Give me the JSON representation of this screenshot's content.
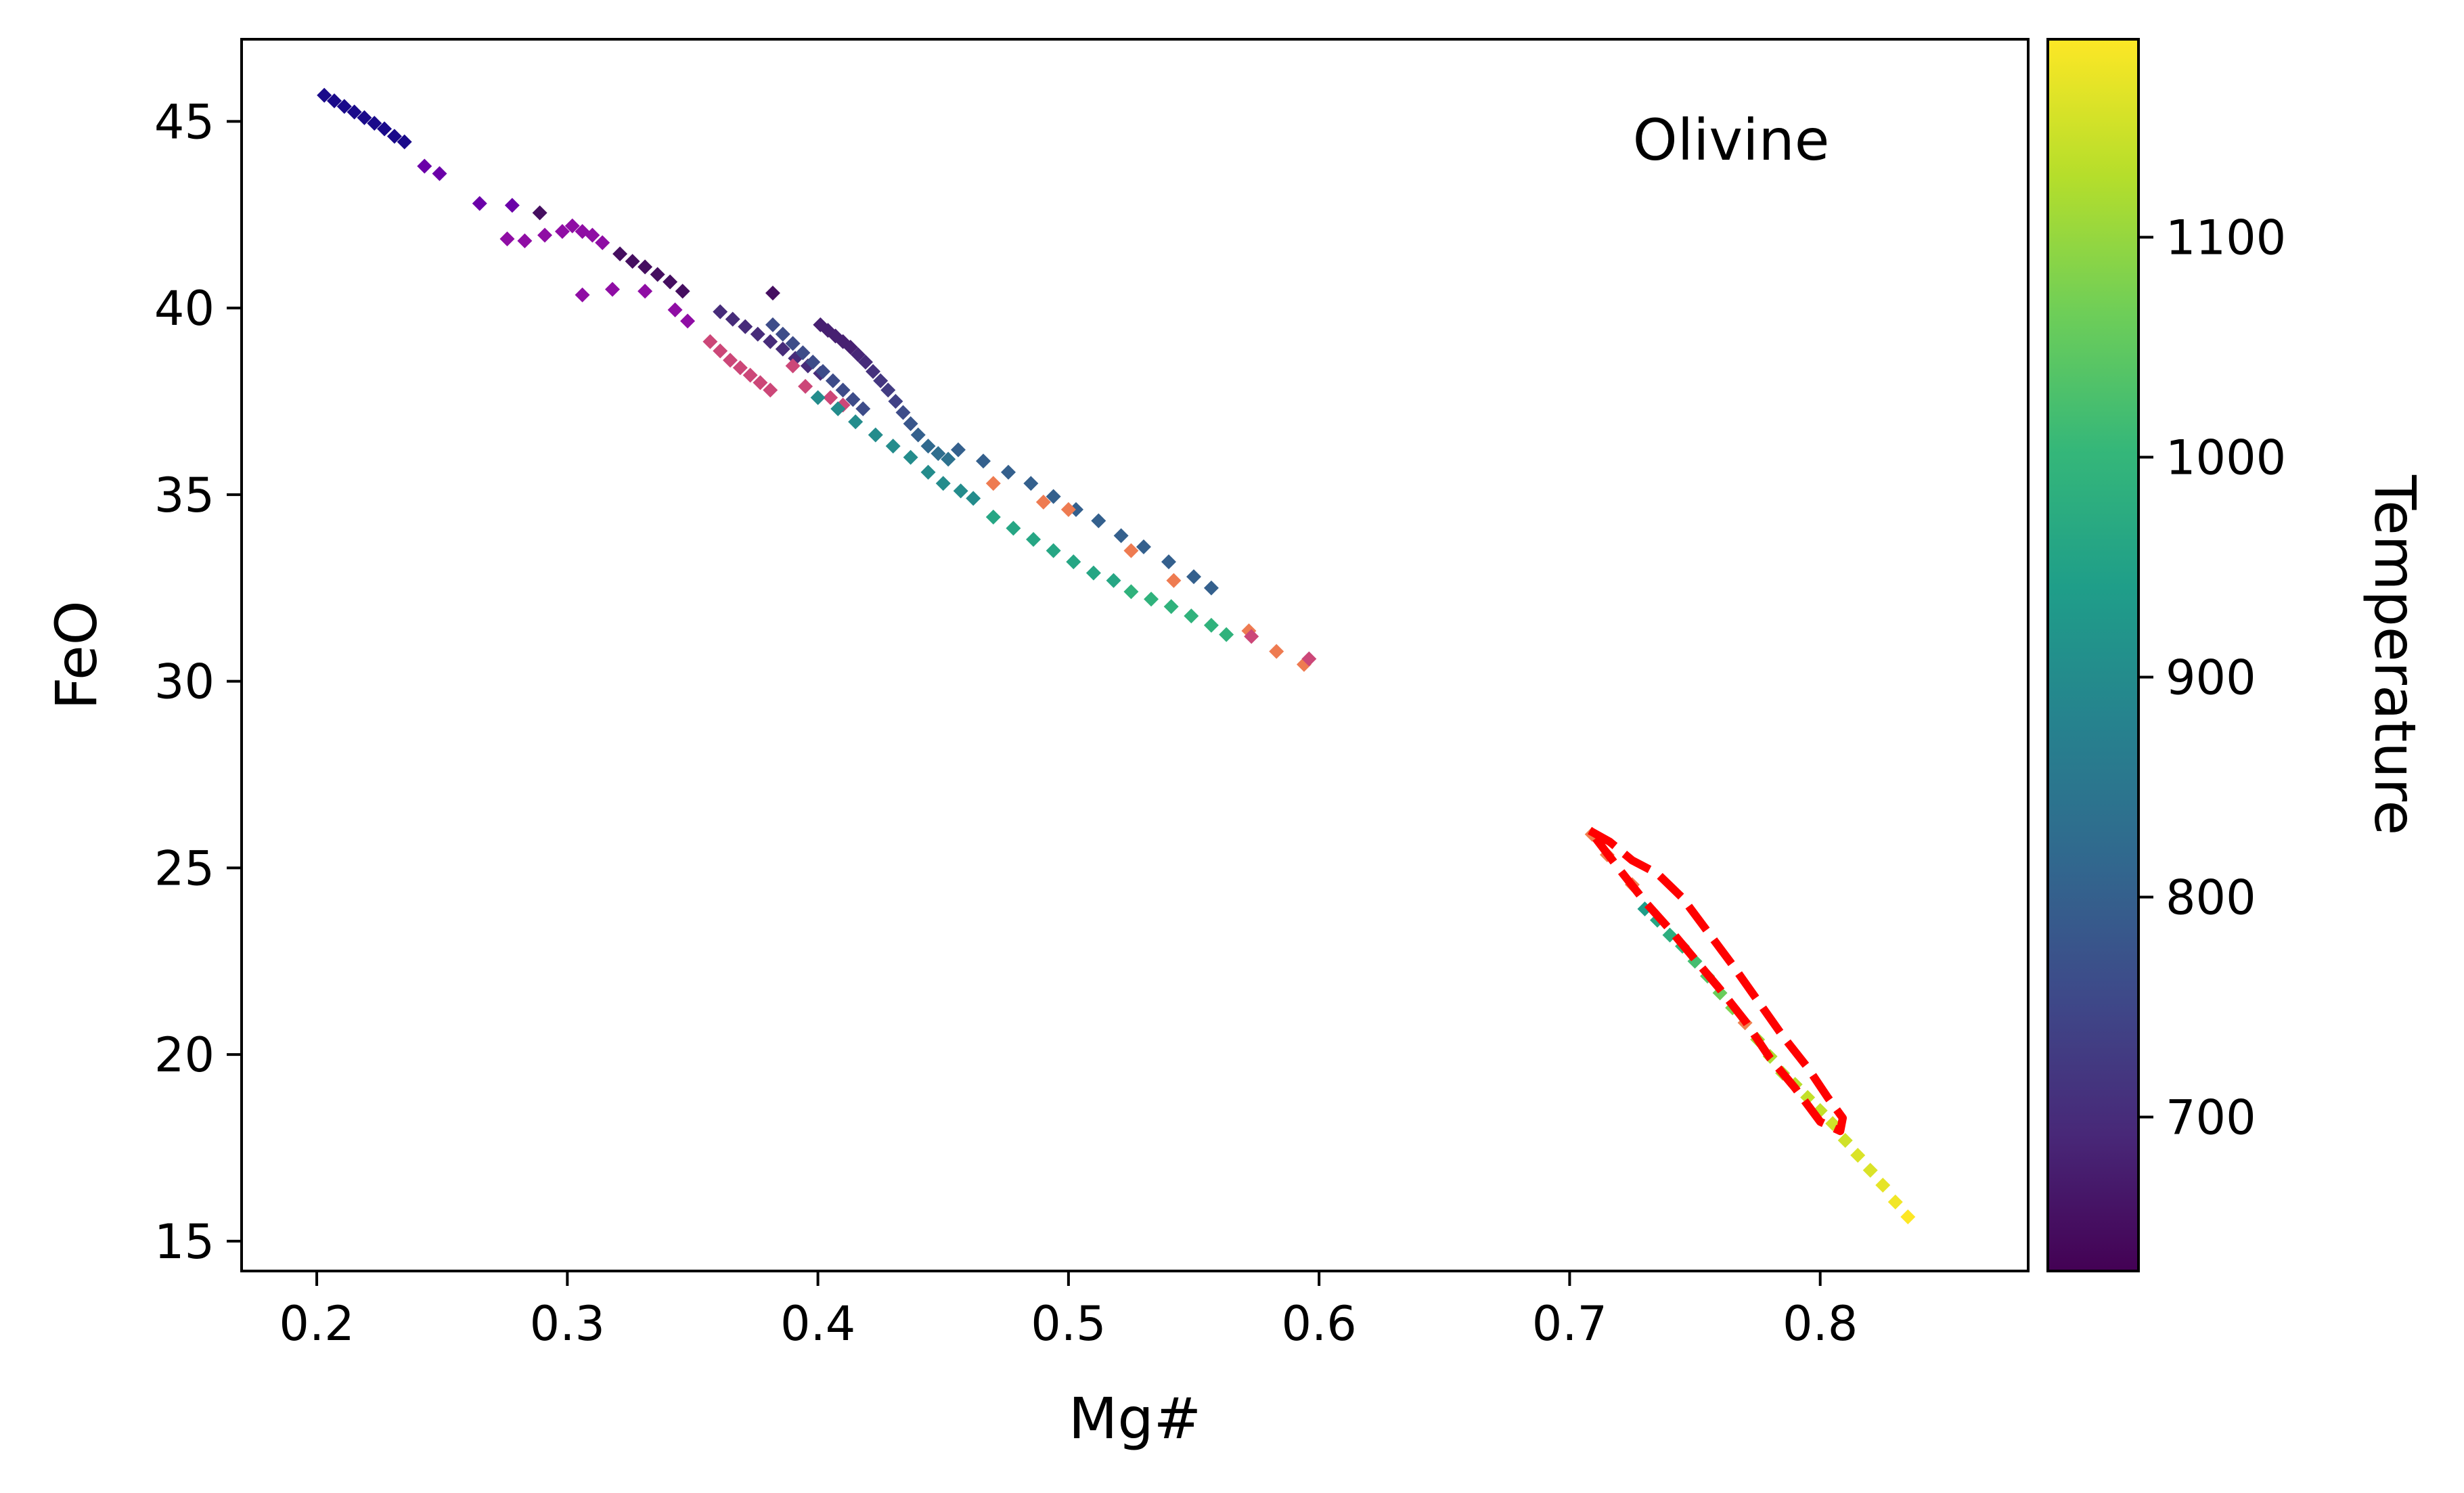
{
  "chart_data": {
    "type": "scatter",
    "annotation": "Olivine",
    "xlabel": "Mg#",
    "ylabel": "FeO",
    "xlim": [
      0.17,
      0.883
    ],
    "ylim": [
      14.2,
      47.2
    ],
    "xticks": [
      0.2,
      0.3,
      0.4,
      0.5,
      0.6,
      0.7,
      0.8
    ],
    "yticks": [
      15,
      20,
      25,
      30,
      35,
      40,
      45
    ],
    "grid": false,
    "colorbar": {
      "label": "Temperature",
      "colormap": "viridis",
      "range": [
        630,
        1190
      ],
      "ticks": [
        700,
        800,
        900,
        1000,
        1100
      ],
      "colors": [
        "#440154",
        "#482878",
        "#3e4989",
        "#31688e",
        "#26828e",
        "#1f9e89",
        "#35b779",
        "#6ece58",
        "#b5de2b",
        "#fde725"
      ]
    },
    "series": [
      {
        "marker": "diamond",
        "color_by": "temperature",
        "points": [
          [
            0.203,
            45.7,
            520
          ],
          [
            0.207,
            45.55,
            520
          ],
          [
            0.211,
            45.4,
            520
          ],
          [
            0.215,
            45.25,
            520
          ],
          [
            0.219,
            45.1,
            520
          ],
          [
            0.223,
            44.95,
            520
          ],
          [
            0.227,
            44.8,
            520
          ],
          [
            0.231,
            44.6,
            520
          ],
          [
            0.235,
            44.45,
            520
          ],
          [
            0.243,
            43.8,
            560
          ],
          [
            0.249,
            43.6,
            560
          ],
          [
            0.265,
            42.8,
            560
          ],
          [
            0.278,
            42.75,
            560
          ],
          [
            0.289,
            42.55,
            650
          ],
          [
            0.276,
            41.85,
            570
          ],
          [
            0.283,
            41.8,
            570
          ],
          [
            0.291,
            41.95,
            570
          ],
          [
            0.298,
            42.05,
            570
          ],
          [
            0.302,
            42.2,
            570
          ],
          [
            0.306,
            42.05,
            570
          ],
          [
            0.31,
            41.95,
            570
          ],
          [
            0.314,
            41.75,
            570
          ],
          [
            0.306,
            40.35,
            570
          ],
          [
            0.318,
            40.5,
            570
          ],
          [
            0.331,
            40.45,
            570
          ],
          [
            0.343,
            39.95,
            580
          ],
          [
            0.348,
            39.65,
            580
          ],
          [
            0.382,
            40.4,
            650
          ],
          [
            0.321,
            41.45,
            650
          ],
          [
            0.326,
            41.25,
            650
          ],
          [
            0.331,
            41.1,
            650
          ],
          [
            0.336,
            40.9,
            650
          ],
          [
            0.341,
            40.7,
            650
          ],
          [
            0.346,
            40.45,
            650
          ],
          [
            0.361,
            39.9,
            700
          ],
          [
            0.366,
            39.7,
            700
          ],
          [
            0.371,
            39.5,
            700
          ],
          [
            0.376,
            39.3,
            700
          ],
          [
            0.381,
            39.1,
            700
          ],
          [
            0.386,
            38.9,
            700
          ],
          [
            0.391,
            38.65,
            700
          ],
          [
            0.396,
            38.45,
            700
          ],
          [
            0.401,
            38.25,
            700
          ],
          [
            0.382,
            39.55,
            760
          ],
          [
            0.386,
            39.3,
            760
          ],
          [
            0.39,
            39.05,
            760
          ],
          [
            0.394,
            38.8,
            760
          ],
          [
            0.398,
            38.55,
            760
          ],
          [
            0.402,
            38.3,
            760
          ],
          [
            0.406,
            38.05,
            760
          ],
          [
            0.41,
            37.8,
            760
          ],
          [
            0.414,
            37.55,
            760
          ],
          [
            0.418,
            37.3,
            760
          ],
          [
            0.401,
            39.55,
            680
          ],
          [
            0.404,
            39.4,
            680
          ],
          [
            0.407,
            39.25,
            680
          ],
          [
            0.41,
            39.1,
            680
          ],
          [
            0.413,
            38.95,
            680
          ],
          [
            0.416,
            38.75,
            690
          ],
          [
            0.419,
            38.55,
            700
          ],
          [
            0.422,
            38.3,
            710
          ],
          [
            0.425,
            38.05,
            720
          ],
          [
            0.428,
            37.8,
            730
          ],
          [
            0.431,
            37.5,
            740
          ],
          [
            0.434,
            37.2,
            760
          ],
          [
            0.437,
            36.9,
            780
          ],
          [
            0.44,
            36.6,
            800
          ],
          [
            0.444,
            36.3,
            820
          ],
          [
            0.448,
            36.1,
            830
          ],
          [
            0.452,
            35.95,
            840
          ],
          [
            0.357,
            39.1,
            500
          ],
          [
            0.361,
            38.85,
            500
          ],
          [
            0.365,
            38.6,
            500
          ],
          [
            0.369,
            38.4,
            500
          ],
          [
            0.373,
            38.2,
            500
          ],
          [
            0.377,
            38.0,
            500
          ],
          [
            0.381,
            37.8,
            500
          ],
          [
            0.39,
            38.45,
            500
          ],
          [
            0.395,
            37.9,
            500
          ],
          [
            0.405,
            37.6,
            500
          ],
          [
            0.41,
            37.4,
            500
          ],
          [
            0.4,
            37.6,
            900
          ],
          [
            0.408,
            37.3,
            900
          ],
          [
            0.415,
            36.95,
            900
          ],
          [
            0.423,
            36.6,
            900
          ],
          [
            0.43,
            36.3,
            900
          ],
          [
            0.437,
            36.0,
            900
          ],
          [
            0.444,
            35.6,
            900
          ],
          [
            0.45,
            35.3,
            900
          ],
          [
            0.457,
            35.1,
            900
          ],
          [
            0.462,
            34.9,
            900
          ],
          [
            0.456,
            36.2,
            800
          ],
          [
            0.466,
            35.9,
            800
          ],
          [
            0.476,
            35.6,
            800
          ],
          [
            0.485,
            35.3,
            800
          ],
          [
            0.494,
            34.95,
            800
          ],
          [
            0.503,
            34.6,
            800
          ],
          [
            0.512,
            34.3,
            800
          ],
          [
            0.521,
            33.9,
            800
          ],
          [
            0.53,
            33.6,
            800
          ],
          [
            0.54,
            33.2,
            800
          ],
          [
            0.55,
            32.8,
            800
          ],
          [
            0.557,
            32.5,
            800
          ],
          [
            0.47,
            34.4,
            960
          ],
          [
            0.478,
            34.1,
            960
          ],
          [
            0.486,
            33.8,
            960
          ],
          [
            0.494,
            33.5,
            960
          ],
          [
            0.502,
            33.2,
            960
          ],
          [
            0.51,
            32.9,
            960
          ],
          [
            0.518,
            32.7,
            960
          ],
          [
            0.525,
            32.4,
            990
          ],
          [
            0.533,
            32.2,
            990
          ],
          [
            0.541,
            32.0,
            990
          ],
          [
            0.549,
            31.75,
            990
          ],
          [
            0.557,
            31.5,
            990
          ],
          [
            0.563,
            31.25,
            990
          ],
          [
            0.47,
            35.3,
            1100
          ],
          [
            0.49,
            34.8,
            1100
          ],
          [
            0.5,
            34.6,
            1100
          ],
          [
            0.525,
            33.5,
            1100
          ],
          [
            0.542,
            32.7,
            1100
          ],
          [
            0.572,
            31.35,
            1100
          ],
          [
            0.583,
            30.8,
            1100
          ],
          [
            0.594,
            30.45,
            1100
          ],
          [
            0.573,
            31.2,
            500
          ],
          [
            0.596,
            30.6,
            500
          ],
          [
            0.709,
            25.9,
            1100
          ],
          [
            0.715,
            25.35,
            1100
          ],
          [
            0.725,
            24.55,
            1100
          ],
          [
            0.73,
            23.9,
            940
          ],
          [
            0.735,
            23.6,
            960
          ],
          [
            0.74,
            23.2,
            980
          ],
          [
            0.745,
            22.9,
            1000
          ],
          [
            0.75,
            22.5,
            1020
          ],
          [
            0.755,
            22.1,
            1040
          ],
          [
            0.76,
            21.65,
            1060
          ],
          [
            0.765,
            21.25,
            1080
          ],
          [
            0.77,
            20.85,
            1100
          ],
          [
            0.775,
            20.4,
            1110
          ],
          [
            0.78,
            19.95,
            1120
          ],
          [
            0.785,
            19.5,
            1120
          ],
          [
            0.79,
            19.2,
            1130
          ],
          [
            0.795,
            18.85,
            1140
          ],
          [
            0.8,
            18.5,
            1140
          ],
          [
            0.805,
            18.15,
            1150
          ],
          [
            0.81,
            17.7,
            1150
          ],
          [
            0.815,
            17.3,
            1160
          ],
          [
            0.82,
            16.9,
            1160
          ],
          [
            0.825,
            16.5,
            1170
          ],
          [
            0.83,
            16.05,
            1180
          ],
          [
            0.835,
            15.65,
            1190
          ]
        ]
      }
    ],
    "envelope": {
      "style": "dashed",
      "color": "#ff0000",
      "points": [
        [
          0.708,
          26.0
        ],
        [
          0.716,
          25.7
        ],
        [
          0.725,
          25.2
        ],
        [
          0.735,
          24.85
        ],
        [
          0.745,
          24.2
        ],
        [
          0.755,
          23.3
        ],
        [
          0.765,
          22.4
        ],
        [
          0.775,
          21.45
        ],
        [
          0.785,
          20.5
        ],
        [
          0.795,
          19.65
        ],
        [
          0.803,
          18.85
        ],
        [
          0.809,
          18.3
        ],
        [
          0.808,
          17.95
        ],
        [
          0.8,
          18.2
        ],
        [
          0.79,
          19.1
        ],
        [
          0.78,
          19.9
        ],
        [
          0.77,
          20.9
        ],
        [
          0.76,
          21.75
        ],
        [
          0.75,
          22.55
        ],
        [
          0.74,
          23.35
        ],
        [
          0.73,
          24.1
        ],
        [
          0.72,
          24.95
        ],
        [
          0.712,
          25.65
        ],
        [
          0.708,
          26.0
        ]
      ]
    }
  }
}
